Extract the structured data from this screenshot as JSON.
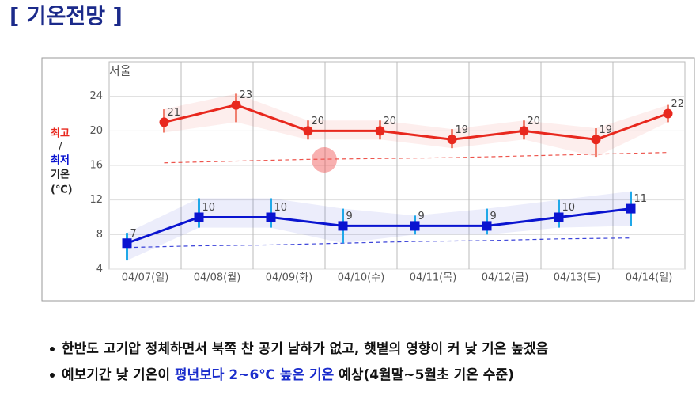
{
  "title": "[ 기온전망 ]",
  "chart_data": {
    "type": "line",
    "location": "서울",
    "ylabel": {
      "high": "최고",
      "sep": "/",
      "low": "최저",
      "rest": "기온",
      "unit": "(℃)"
    },
    "categories": [
      "04/07(일)",
      "04/08(월)",
      "04/09(화)",
      "04/10(수)",
      "04/11(목)",
      "04/12(금)",
      "04/13(토)",
      "04/14(일)"
    ],
    "series": [
      {
        "color": "#e8281e",
        "values": [
          21,
          23,
          20,
          20,
          19,
          20,
          19,
          22
        ],
        "low": [
          19.8,
          21,
          19,
          19,
          18,
          19,
          17,
          21
        ],
        "high": [
          22.5,
          24.3,
          21.2,
          21.2,
          20.2,
          21.2,
          20.3,
          23
        ],
        "normal": [
          16.3,
          16.5,
          16.7,
          16.8,
          16.9,
          17.1,
          17.3,
          17.5
        ]
      },
      {
        "color": "#0a14d0",
        "values": [
          7,
          10,
          10,
          9,
          9,
          9,
          10,
          11
        ],
        "low": [
          5,
          8.8,
          8.8,
          7,
          8,
          8,
          8.8,
          9
        ],
        "high": [
          8.2,
          12.2,
          12.2,
          11,
          10.2,
          11,
          12,
          13
        ],
        "normal": [
          6.5,
          6.7,
          6.8,
          7,
          7.2,
          7.3,
          7.5,
          7.6
        ]
      }
    ],
    "ylim": [
      4,
      28
    ],
    "yticks": [
      4,
      8,
      12,
      16,
      20,
      24
    ],
    "grid": true
  },
  "bullets": [
    [
      "한반도 고기압 정체하면서 북쪽 찬 공기 남하가 없고, 햇볕의 영향이 커 낮 기온 높겠음"
    ],
    [
      "예보기간 낮 기온이 ",
      "평년보다 2~6℃ 높은 기온",
      " 예상(4월말~5월초 기온 수준)"
    ]
  ]
}
